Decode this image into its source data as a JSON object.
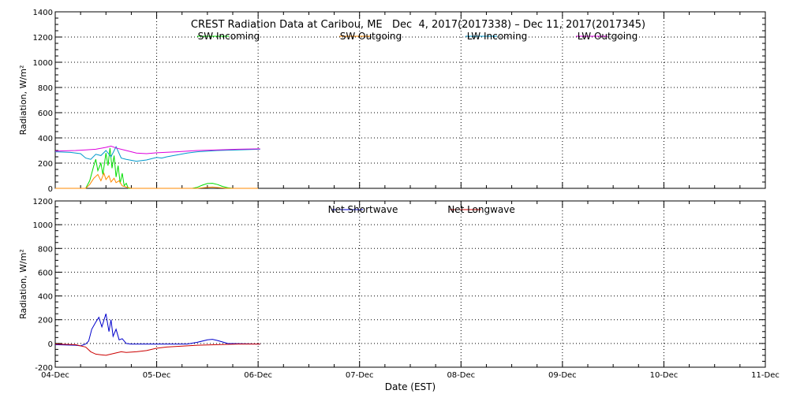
{
  "title": "CREST Radiation Data at Caribou, ME   Dec  4, 2017(2017338) – Dec 11, 2017(2017345)",
  "xlabel": "Date (EST)",
  "chart_data": [
    {
      "type": "line",
      "panel": "top",
      "ylabel": "Radiation, W/m^2",
      "ylim": [
        0,
        1400
      ],
      "yticks": [
        0,
        200,
        400,
        600,
        800,
        1000,
        1200,
        1400
      ],
      "ytick_labels": [
        "0",
        "200",
        "400",
        "600",
        "800",
        "1000",
        "1200",
        "1400"
      ],
      "xlim": [
        0,
        7
      ],
      "xtick_labels": [
        "04-Dec",
        "05-Dec",
        "06-Dec",
        "07-Dec",
        "08-Dec",
        "09-Dec",
        "10-Dec",
        "11-Dec"
      ],
      "grid": true,
      "legend_position": "top",
      "series": [
        {
          "name": "SW Incoming",
          "color": "#00dd00",
          "x": [
            0,
            0.3,
            0.34,
            0.38,
            0.4,
            0.42,
            0.45,
            0.47,
            0.5,
            0.52,
            0.54,
            0.56,
            0.58,
            0.6,
            0.62,
            0.64,
            0.66,
            0.68,
            0.7,
            0.72,
            0.75,
            1.0,
            1.35,
            1.4,
            1.45,
            1.5,
            1.55,
            1.6,
            1.65,
            1.7,
            1.75,
            2.0
          ],
          "y": [
            0,
            0,
            60,
            180,
            230,
            140,
            200,
            110,
            280,
            180,
            320,
            160,
            260,
            90,
            180,
            40,
            120,
            20,
            40,
            0,
            0,
            0,
            0,
            8,
            25,
            38,
            40,
            30,
            15,
            5,
            0,
            0
          ]
        },
        {
          "name": "SW Outgoing",
          "color": "#ff8800",
          "x": [
            0,
            0.3,
            0.34,
            0.38,
            0.42,
            0.45,
            0.48,
            0.5,
            0.53,
            0.55,
            0.58,
            0.6,
            0.63,
            0.66,
            0.7,
            0.75,
            1.0,
            1.4,
            1.5,
            1.55,
            1.6,
            1.7,
            2.0
          ],
          "y": [
            0,
            0,
            30,
            80,
            110,
            60,
            120,
            70,
            100,
            50,
            80,
            45,
            60,
            20,
            10,
            0,
            0,
            0,
            8,
            10,
            6,
            0,
            0
          ]
        },
        {
          "name": "LW Incoming",
          "color": "#0099cc",
          "x": [
            0,
            0.15,
            0.25,
            0.3,
            0.35,
            0.4,
            0.45,
            0.5,
            0.55,
            0.6,
            0.65,
            0.7,
            0.8,
            0.9,
            1.0,
            1.05,
            1.1,
            1.2,
            1.3,
            1.4,
            1.6,
            1.8,
            2.02
          ],
          "y": [
            290,
            285,
            275,
            240,
            230,
            270,
            260,
            300,
            250,
            330,
            240,
            230,
            215,
            225,
            245,
            240,
            250,
            265,
            280,
            290,
            300,
            305,
            310
          ]
        },
        {
          "name": "LW Outgoing",
          "color": "#dd00dd",
          "x": [
            0,
            0.2,
            0.3,
            0.4,
            0.5,
            0.55,
            0.6,
            0.7,
            0.8,
            0.9,
            1.0,
            1.2,
            1.4,
            1.6,
            1.8,
            2.02
          ],
          "y": [
            295,
            300,
            305,
            310,
            325,
            335,
            320,
            300,
            280,
            275,
            282,
            290,
            300,
            305,
            310,
            313
          ]
        }
      ]
    },
    {
      "type": "line",
      "panel": "bottom",
      "ylabel": "Radiation, W/m^2",
      "ylim": [
        -200,
        1200
      ],
      "yticks": [
        -200,
        0,
        200,
        400,
        600,
        800,
        1000,
        1200
      ],
      "ytick_labels": [
        "-200",
        "0",
        "200",
        "400",
        "600",
        "800",
        "1000",
        "1200"
      ],
      "xlim": [
        0,
        7
      ],
      "xtick_labels": [
        "04-Dec",
        "05-Dec",
        "06-Dec",
        "07-Dec",
        "08-Dec",
        "09-Dec",
        "10-Dec",
        "11-Dec"
      ],
      "grid": true,
      "legend_position": "top",
      "series": [
        {
          "name": "Net Shortwave",
          "color": "#0000cc",
          "x": [
            0,
            0.2,
            0.25,
            0.3,
            0.33,
            0.36,
            0.4,
            0.43,
            0.46,
            0.5,
            0.53,
            0.55,
            0.57,
            0.6,
            0.63,
            0.66,
            0.7,
            0.75,
            1.0,
            1.3,
            1.4,
            1.5,
            1.55,
            1.6,
            1.7,
            2.02
          ],
          "y": [
            -10,
            -15,
            -20,
            -5,
            20,
            120,
            180,
            220,
            140,
            250,
            100,
            200,
            60,
            120,
            30,
            40,
            0,
            -5,
            -5,
            -5,
            10,
            30,
            35,
            25,
            0,
            -5
          ]
        },
        {
          "name": "Net Longwave",
          "color": "#cc0000",
          "x": [
            0,
            0.2,
            0.3,
            0.35,
            0.4,
            0.45,
            0.5,
            0.55,
            0.6,
            0.65,
            0.7,
            0.8,
            0.9,
            1.0,
            1.1,
            1.2,
            1.4,
            1.6,
            1.8,
            2.02
          ],
          "y": [
            -5,
            -10,
            -30,
            -70,
            -90,
            -95,
            -100,
            -90,
            -80,
            -70,
            -75,
            -70,
            -60,
            -40,
            -30,
            -25,
            -15,
            -10,
            -5,
            -5
          ]
        }
      ]
    }
  ]
}
